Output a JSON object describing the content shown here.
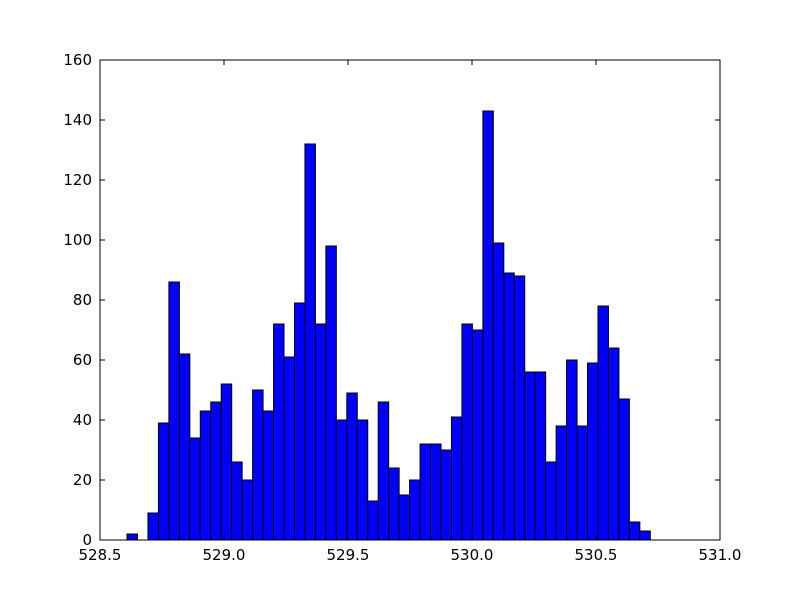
{
  "chart_data": {
    "type": "histogram",
    "bins": [
      528.609,
      528.6512,
      528.6934,
      528.7356,
      528.7778,
      528.82,
      528.8622,
      528.9044,
      528.9466,
      528.9888,
      529.031,
      529.0732,
      529.1154,
      529.1576,
      529.1998,
      529.242,
      529.2842,
      529.3264,
      529.3686,
      529.4108,
      529.453,
      529.4952,
      529.5374,
      529.5796,
      529.6218,
      529.664,
      529.7062,
      529.7484,
      529.7906,
      529.8328,
      529.875,
      529.9172,
      529.9594,
      530.0016,
      530.0438,
      530.086,
      530.1282,
      530.1704,
      530.2126,
      530.2548,
      530.297,
      530.3392,
      530.3814,
      530.4236,
      530.4658,
      530.508,
      530.5502,
      530.5924,
      530.6346,
      530.6768,
      530.719
    ],
    "values": [
      2,
      0,
      9,
      39,
      86,
      62,
      34,
      43,
      46,
      52,
      26,
      20,
      50,
      43,
      72,
      61,
      79,
      132,
      72,
      98,
      40,
      49,
      40,
      13,
      46,
      24,
      15,
      20,
      32,
      32,
      30,
      41,
      72,
      70,
      143,
      99,
      89,
      88,
      56,
      56,
      26,
      38,
      60,
      38,
      59,
      78,
      64,
      47,
      6,
      3
    ],
    "color": "#0000ff",
    "xlim": [
      528.5,
      531.0
    ],
    "xticks": [
      {
        "value": 528.5,
        "label": "528.5"
      },
      {
        "value": 529.0,
        "label": "529.0"
      },
      {
        "value": 529.5,
        "label": "529.5"
      },
      {
        "value": 530.0,
        "label": "530.0"
      },
      {
        "value": 530.5,
        "label": "530.5"
      },
      {
        "value": 531.0,
        "label": "531.0"
      }
    ],
    "ylim": [
      0,
      160
    ],
    "yticks": [
      0,
      20,
      40,
      60,
      80,
      100,
      120,
      140,
      160
    ]
  }
}
